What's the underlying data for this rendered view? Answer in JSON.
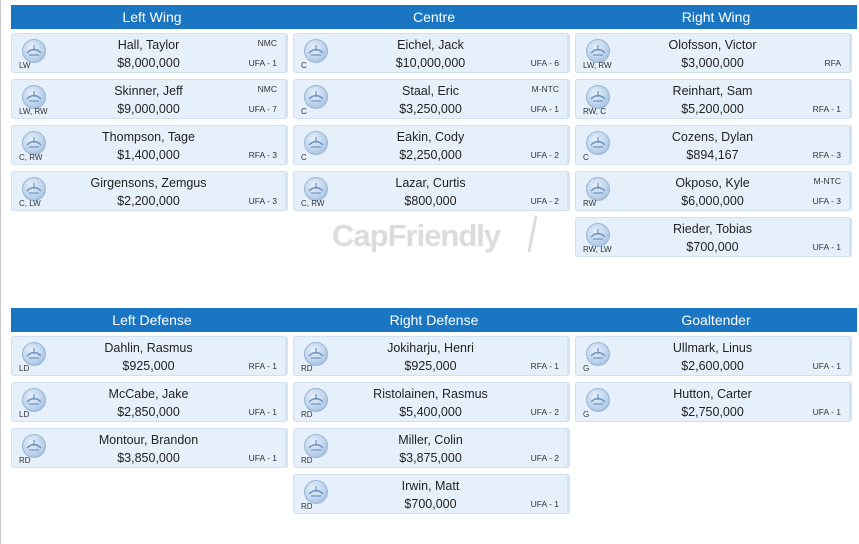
{
  "watermark": "CapFriendly",
  "forwards": {
    "headers": [
      "Left Wing",
      "Centre",
      "Right Wing"
    ],
    "columns": [
      [
        {
          "name": "Hall, Taylor",
          "cap": "$8,000,000",
          "pos": "LW",
          "clause": "NMC",
          "status": "UFA - 1"
        },
        {
          "name": "Skinner, Jeff",
          "cap": "$9,000,000",
          "pos": "LW, RW",
          "clause": "NMC",
          "status": "UFA - 7"
        },
        {
          "name": "Thompson, Tage",
          "cap": "$1,400,000",
          "pos": "C, RW",
          "clause": "",
          "status": "RFA - 3"
        },
        {
          "name": "Girgensons, Zemgus",
          "cap": "$2,200,000",
          "pos": "C, LW",
          "clause": "",
          "status": "UFA - 3"
        }
      ],
      [
        {
          "name": "Eichel, Jack",
          "cap": "$10,000,000",
          "pos": "C",
          "clause": "",
          "status": "UFA - 6"
        },
        {
          "name": "Staal, Eric",
          "cap": "$3,250,000",
          "pos": "C",
          "clause": "M-NTC",
          "status": "UFA - 1"
        },
        {
          "name": "Eakin, Cody",
          "cap": "$2,250,000",
          "pos": "C",
          "clause": "",
          "status": "UFA - 2"
        },
        {
          "name": "Lazar, Curtis",
          "cap": "$800,000",
          "pos": "C, RW",
          "clause": "",
          "status": "UFA - 2"
        }
      ],
      [
        {
          "name": "Olofsson, Victor",
          "cap": "$3,000,000",
          "pos": "LW, RW",
          "clause": "",
          "status": "RFA"
        },
        {
          "name": "Reinhart, Sam",
          "cap": "$5,200,000",
          "pos": "RW, C",
          "clause": "",
          "status": "RFA - 1"
        },
        {
          "name": "Cozens, Dylan",
          "cap": "$894,167",
          "pos": "C",
          "clause": "",
          "status": "RFA - 3"
        },
        {
          "name": "Okposo, Kyle",
          "cap": "$6,000,000",
          "pos": "RW",
          "clause": "M-NTC",
          "status": "UFA - 3"
        },
        {
          "name": "Rieder, Tobias",
          "cap": "$700,000",
          "pos": "RW, LW",
          "clause": "",
          "status": "UFA - 1"
        }
      ]
    ]
  },
  "defense": {
    "headers": [
      "Left Defense",
      "Right Defense",
      "Goaltender"
    ],
    "columns": [
      [
        {
          "name": "Dahlin, Rasmus",
          "cap": "$925,000",
          "pos": "LD",
          "clause": "",
          "status": "RFA - 1"
        },
        {
          "name": "McCabe, Jake",
          "cap": "$2,850,000",
          "pos": "LD",
          "clause": "",
          "status": "UFA - 1"
        },
        {
          "name": "Montour, Brandon",
          "cap": "$3,850,000",
          "pos": "RD",
          "clause": "",
          "status": "UFA - 1"
        }
      ],
      [
        {
          "name": "Jokiharju, Henri",
          "cap": "$925,000",
          "pos": "RD",
          "clause": "",
          "status": "RFA - 1"
        },
        {
          "name": "Ristolainen, Rasmus",
          "cap": "$5,400,000",
          "pos": "RD",
          "clause": "",
          "status": "UFA - 2"
        },
        {
          "name": "Miller, Colin",
          "cap": "$3,875,000",
          "pos": "RD",
          "clause": "",
          "status": "UFA - 2"
        },
        {
          "name": "Irwin, Matt",
          "cap": "$700,000",
          "pos": "RD",
          "clause": "",
          "status": "UFA - 1"
        }
      ],
      [
        {
          "name": "Ullmark, Linus",
          "cap": "$2,600,000",
          "pos": "G",
          "clause": "",
          "status": "UFA - 1"
        },
        {
          "name": "Hutton, Carter",
          "cap": "$2,750,000",
          "pos": "G",
          "clause": "",
          "status": "UFA - 1"
        }
      ]
    ]
  }
}
